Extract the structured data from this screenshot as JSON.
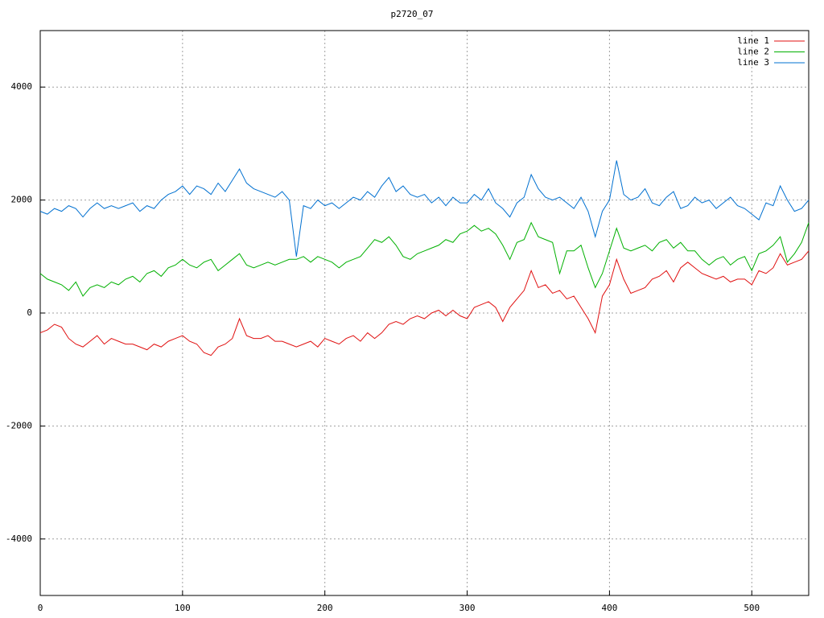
{
  "chart_data": {
    "type": "line",
    "title": "p2720_07",
    "x": [
      0,
      5,
      10,
      15,
      20,
      25,
      30,
      35,
      40,
      45,
      50,
      55,
      60,
      65,
      70,
      75,
      80,
      85,
      90,
      95,
      100,
      105,
      110,
      115,
      120,
      125,
      130,
      135,
      140,
      145,
      150,
      155,
      160,
      165,
      170,
      175,
      180,
      185,
      190,
      195,
      200,
      205,
      210,
      215,
      220,
      225,
      230,
      235,
      240,
      245,
      250,
      255,
      260,
      265,
      270,
      275,
      280,
      285,
      290,
      295,
      300,
      305,
      310,
      315,
      320,
      325,
      330,
      335,
      340,
      345,
      350,
      355,
      360,
      365,
      370,
      375,
      380,
      385,
      390,
      395,
      400,
      405,
      410,
      415,
      420,
      425,
      430,
      435,
      440,
      445,
      450,
      455,
      460,
      465,
      470,
      475,
      480,
      485,
      490,
      495,
      500,
      505,
      510,
      515,
      520,
      525,
      530,
      535,
      540
    ],
    "series": [
      {
        "name": "line 1",
        "color": "#e01010",
        "values": [
          -350,
          -300,
          -200,
          -250,
          -450,
          -550,
          -600,
          -500,
          -400,
          -550,
          -450,
          -500,
          -550,
          -550,
          -600,
          -650,
          -550,
          -600,
          -500,
          -450,
          -400,
          -500,
          -550,
          -700,
          -750,
          -600,
          -550,
          -450,
          -100,
          -400,
          -450,
          -450,
          -400,
          -500,
          -500,
          -550,
          -600,
          -550,
          -500,
          -600,
          -450,
          -500,
          -550,
          -450,
          -400,
          -500,
          -350,
          -450,
          -350,
          -200,
          -150,
          -200,
          -100,
          -50,
          -100,
          0,
          50,
          -50,
          50,
          -50,
          -100,
          100,
          150,
          200,
          100,
          -150,
          100,
          250,
          400,
          750,
          450,
          500,
          350,
          400,
          250,
          300,
          100,
          -100,
          -350,
          300,
          500,
          950,
          600,
          350,
          400,
          450,
          600,
          650,
          750,
          550,
          800,
          900,
          800,
          700,
          650,
          600,
          650,
          550,
          600,
          600,
          500,
          750,
          700,
          800,
          1050,
          850,
          900,
          950,
          1100
        ]
      },
      {
        "name": "line 2",
        "color": "#00b000",
        "values": [
          700,
          600,
          550,
          500,
          400,
          550,
          300,
          450,
          500,
          450,
          550,
          500,
          600,
          650,
          550,
          700,
          750,
          650,
          800,
          850,
          950,
          850,
          800,
          900,
          950,
          750,
          850,
          950,
          1050,
          850,
          800,
          850,
          900,
          850,
          900,
          950,
          950,
          1000,
          900,
          1000,
          950,
          900,
          800,
          900,
          950,
          1000,
          1150,
          1300,
          1250,
          1350,
          1200,
          1000,
          950,
          1050,
          1100,
          1150,
          1200,
          1300,
          1250,
          1400,
          1450,
          1550,
          1450,
          1500,
          1400,
          1200,
          950,
          1250,
          1300,
          1600,
          1350,
          1300,
          1250,
          700,
          1100,
          1100,
          1200,
          800,
          450,
          700,
          1100,
          1500,
          1150,
          1100,
          1150,
          1200,
          1100,
          1250,
          1300,
          1150,
          1250,
          1100,
          1100,
          950,
          850,
          950,
          1000,
          850,
          950,
          1000,
          750,
          1050,
          1100,
          1200,
          1350,
          900,
          1050,
          1250,
          1600
        ]
      },
      {
        "name": "line 3",
        "color": "#0070d0",
        "values": [
          1800,
          1750,
          1850,
          1800,
          1900,
          1850,
          1700,
          1850,
          1950,
          1850,
          1900,
          1850,
          1900,
          1950,
          1800,
          1900,
          1850,
          2000,
          2100,
          2150,
          2250,
          2100,
          2250,
          2200,
          2100,
          2300,
          2150,
          2350,
          2550,
          2300,
          2200,
          2150,
          2100,
          2050,
          2150,
          2000,
          1000,
          1900,
          1850,
          2000,
          1900,
          1950,
          1850,
          1950,
          2050,
          2000,
          2150,
          2050,
          2250,
          2400,
          2150,
          2250,
          2100,
          2050,
          2100,
          1950,
          2050,
          1900,
          2050,
          1950,
          1950,
          2100,
          2000,
          2200,
          1950,
          1850,
          1700,
          1950,
          2050,
          2450,
          2200,
          2050,
          2000,
          2050,
          1950,
          1850,
          2050,
          1800,
          1350,
          1800,
          2000,
          2700,
          2100,
          2000,
          2050,
          2200,
          1950,
          1900,
          2050,
          2150,
          1850,
          1900,
          2050,
          1950,
          2000,
          1850,
          1950,
          2050,
          1900,
          1850,
          1750,
          1650,
          1950,
          1900,
          2250,
          2000,
          1800,
          1850,
          2000
        ]
      }
    ],
    "xlim": [
      0,
      540
    ],
    "ylim": [
      -5000,
      5000
    ],
    "xticks": [
      0,
      100,
      200,
      300,
      400,
      500
    ],
    "yticks": [
      -4000,
      -2000,
      0,
      2000,
      4000
    ],
    "grid": true,
    "legend": "top-right"
  }
}
